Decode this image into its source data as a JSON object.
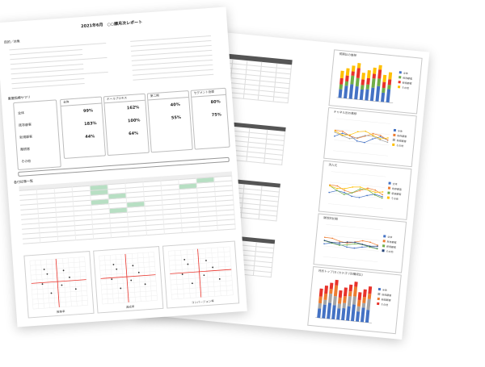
{
  "report": {
    "title": "2021年6月　○○課月次レポート",
    "section_purpose": "目的／対象",
    "section_summary": "重要指標サマリ",
    "section_list": "各付記事一覧"
  },
  "summary_panels": [
    {
      "label": "全体",
      "value": "30%"
    },
    {
      "label": "ホールプロモス",
      "value": "67%"
    },
    {
      "label": "第二期",
      "value": "75%"
    },
    {
      "label": "セグメント指標",
      "value": "50%"
    }
  ],
  "summary_values": [
    "99%",
    "162%",
    "40%",
    "80%",
    "183%",
    "100%",
    "55%",
    "75%",
    "44%",
    "64%"
  ],
  "side_labels": [
    "全体",
    "既存顧客",
    "新規顧客",
    "離脱客",
    "その他"
  ],
  "scatter_labels": {
    "xaxis": [
      "推移率",
      "達成率",
      "コンバージョン率"
    ]
  },
  "right_charts": [
    {
      "title": "前期比の推移"
    },
    {
      "title": "チャネル別の推移"
    },
    {
      "title": "流入元"
    },
    {
      "title": "属性別比較"
    },
    {
      "title": "月別トップ10 (カテゴリ別構成比)"
    }
  ],
  "legend_items": [
    "全体",
    "既存顧客",
    "新規顧客",
    "その他"
  ],
  "colors": {
    "blue": "#4472c4",
    "orange": "#ed7d31",
    "gray": "#a5a5a5",
    "yellow": "#ffc000",
    "green": "#70ad47",
    "red": "#e8322a",
    "navy": "#264478",
    "header": "#555555"
  }
}
